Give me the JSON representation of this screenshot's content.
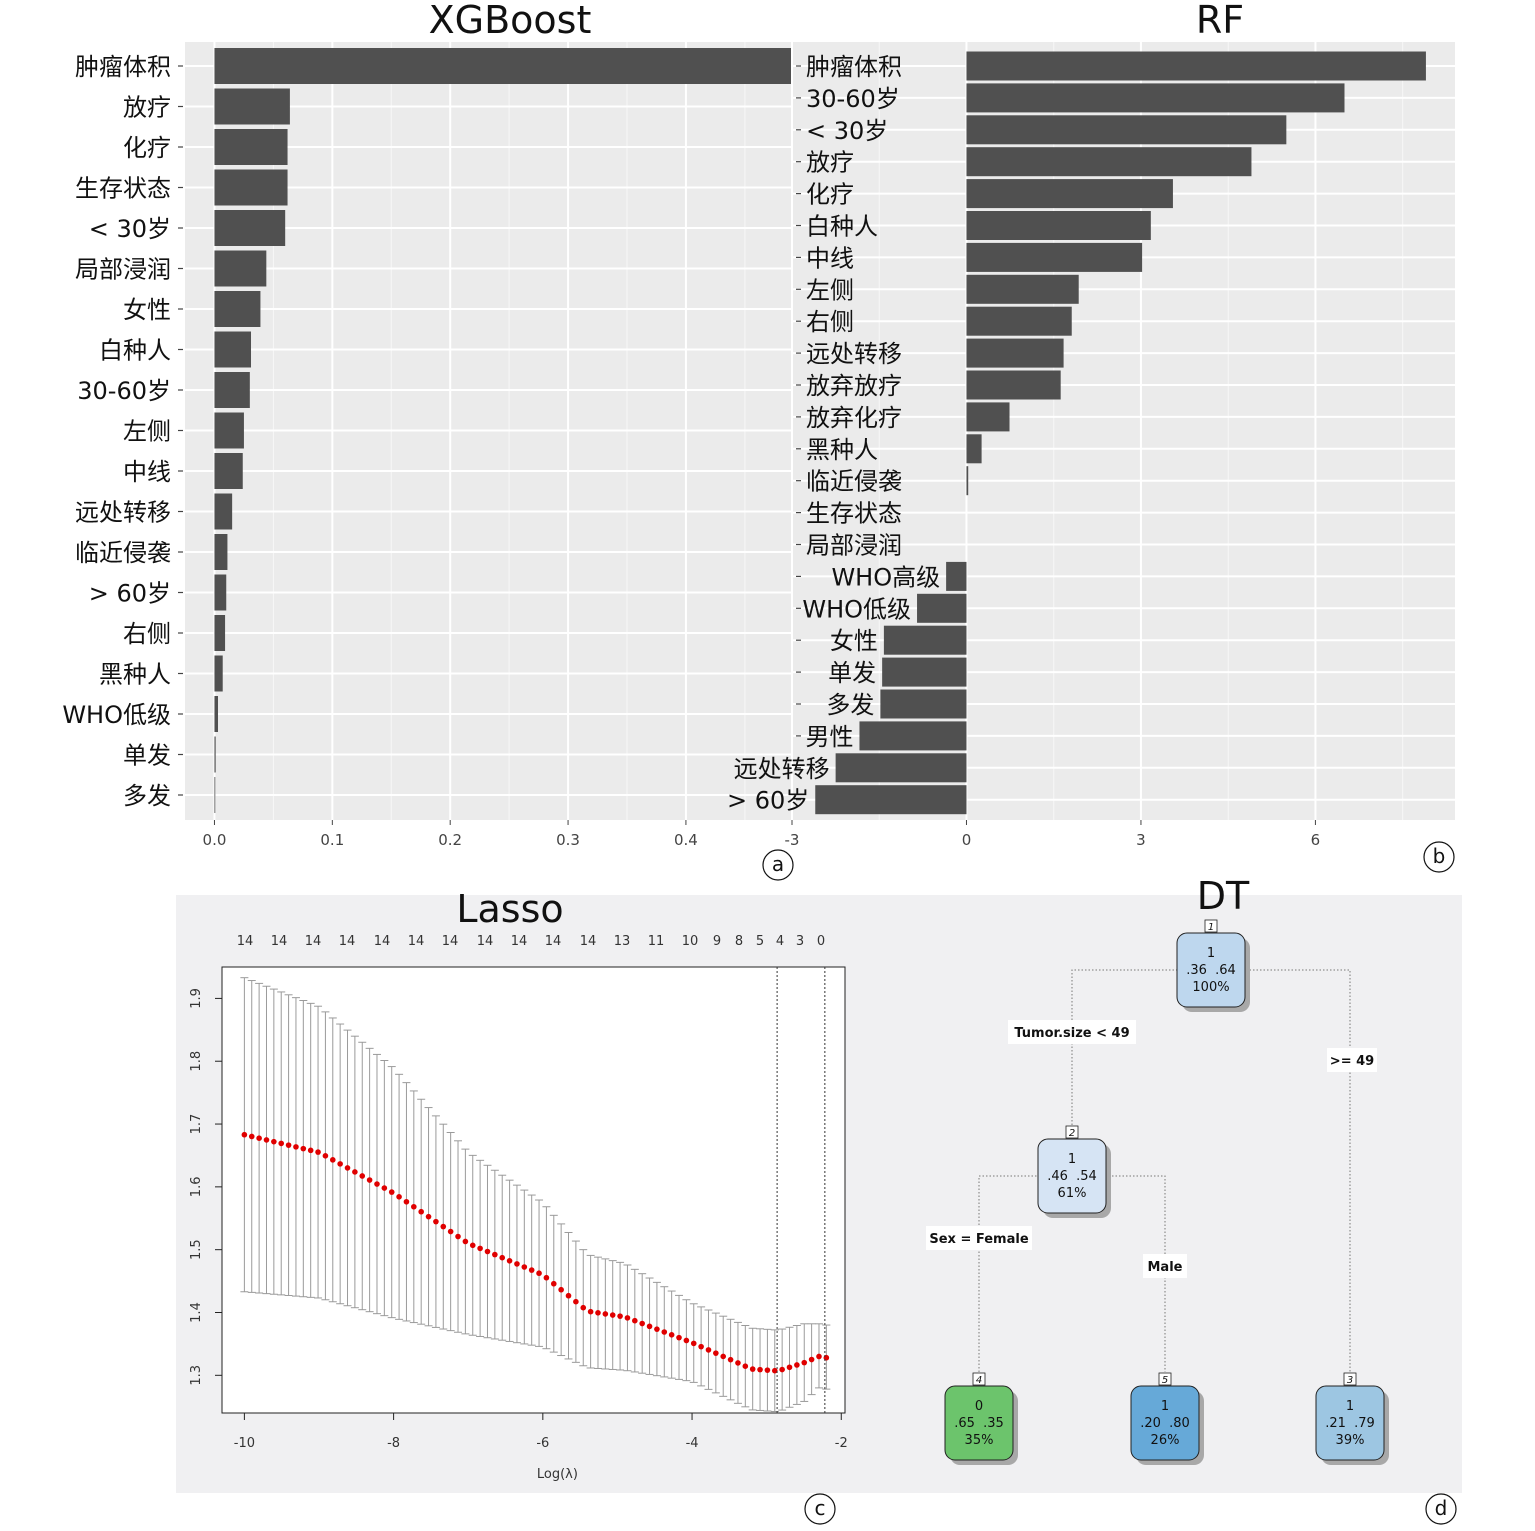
{
  "chart_data": [
    {
      "id": "a",
      "type": "bar",
      "orientation": "horizontal",
      "title": "XGBoost",
      "panel_label": "a",
      "categories": [
        "肿瘤体积",
        "放疗",
        "化疗",
        "生存状态",
        "< 30岁",
        "局部浸润",
        "女性",
        "白种人",
        "30-60岁",
        "左侧",
        "中线",
        "远处转移",
        "临近侵袭",
        "> 60岁",
        "右侧",
        "黑种人",
        "WHO低级",
        "单发",
        "多发"
      ],
      "values": [
        0.49,
        0.064,
        0.062,
        0.062,
        0.06,
        0.044,
        0.039,
        0.031,
        0.03,
        0.025,
        0.024,
        0.015,
        0.011,
        0.01,
        0.009,
        0.007,
        0.003,
        0.001,
        0.0
      ],
      "xlim": [
        -0.025,
        0.49
      ],
      "xticks": [
        "0.0",
        "0.1",
        "0.2",
        "0.3",
        "0.4"
      ],
      "grid": true,
      "colors": {
        "bar": "#505050",
        "panel": "#ebebeb",
        "grid": "#ffffff"
      }
    },
    {
      "id": "b",
      "type": "bar",
      "orientation": "horizontal",
      "title": "RF",
      "panel_label": "b",
      "categories": [
        "肿瘤体积",
        "30-60岁",
        "< 30岁",
        "放疗",
        "化疗",
        "白种人",
        "中线",
        "左侧",
        "右侧",
        "远处转移",
        "放弃放疗",
        "放弃化疗",
        "黑种人",
        "临近侵袭",
        "生存状态",
        "局部浸润",
        "WHO高级",
        "WHO低级",
        "女性",
        "单发",
        "多发",
        "男性",
        "远处转移",
        "> 60岁"
      ],
      "values": [
        7.9,
        6.5,
        5.5,
        4.9,
        3.55,
        3.17,
        3.02,
        1.93,
        1.81,
        1.67,
        1.62,
        0.74,
        0.26,
        0.03,
        0.0,
        0.0,
        -0.35,
        -0.85,
        -1.42,
        -1.45,
        -1.48,
        -1.84,
        -2.25,
        -2.6
      ],
      "xlim": [
        -3.0,
        8.4
      ],
      "xticks": [
        "-3",
        "0",
        "3",
        "6"
      ],
      "grid": true,
      "colors": {
        "bar": "#505050",
        "panel": "#ebebeb",
        "grid": "#ffffff"
      }
    },
    {
      "id": "c",
      "type": "scatter",
      "title": "Lasso",
      "panel_label": "c",
      "xlabel": "Log(λ)",
      "ylabel": "",
      "xlim": [
        -10.3,
        -1.95
      ],
      "ylim": [
        1.24,
        1.95
      ],
      "xticks": [
        "-10",
        "-8",
        "-6",
        "-4",
        "-2"
      ],
      "yticks": [
        "1.3",
        "1.4",
        "1.5",
        "1.6",
        "1.7",
        "1.8",
        "1.9"
      ],
      "top_axis_labels": [
        "14",
        "14",
        "14",
        "14",
        "14",
        "14",
        "14",
        "14",
        "14",
        "14",
        "14",
        "13",
        "11",
        "10",
        "9",
        "8",
        "5",
        "4",
        "3",
        "0"
      ],
      "points": [
        {
          "x": -10.0,
          "y": 1.683,
          "lo": 1.433,
          "hi": 1.933
        },
        {
          "x": -9.0,
          "y": 1.655,
          "lo": 1.423,
          "hi": 1.887
        },
        {
          "x": -8.0,
          "y": 1.59,
          "lo": 1.391,
          "hi": 1.789
        },
        {
          "x": -7.0,
          "y": 1.51,
          "lo": 1.365,
          "hi": 1.655
        },
        {
          "x": -6.0,
          "y": 1.46,
          "lo": 1.345,
          "hi": 1.575
        },
        {
          "x": -5.4,
          "y": 1.402,
          "lo": 1.312,
          "hi": 1.492
        },
        {
          "x": -4.9,
          "y": 1.393,
          "lo": 1.308,
          "hi": 1.478
        },
        {
          "x": -4.0,
          "y": 1.352,
          "lo": 1.29,
          "hi": 1.415
        },
        {
          "x": -3.2,
          "y": 1.31,
          "lo": 1.245,
          "hi": 1.375
        },
        {
          "x": -2.85,
          "y": 1.307,
          "lo": 1.242,
          "hi": 1.372
        },
        {
          "x": -2.5,
          "y": 1.32,
          "lo": 1.258,
          "hi": 1.382
        },
        {
          "x": -2.3,
          "y": 1.33,
          "lo": 1.28,
          "hi": 1.382
        },
        {
          "x": -2.2,
          "y": 1.328,
          "lo": 1.278,
          "hi": 1.38
        }
      ],
      "vlines": [
        -2.86,
        -2.22
      ],
      "colors": {
        "point": "#e00000",
        "errorbar": "#9a9a9a",
        "panel": "#f0f0f2"
      }
    },
    {
      "id": "d",
      "type": "tree",
      "title": "DT",
      "panel_label": "d",
      "nodes": [
        {
          "id": "1",
          "class": "1",
          "probs": ".36  .64",
          "pct": "100%",
          "color": "#bed7ee"
        },
        {
          "id": "2",
          "class": "1",
          "probs": ".46  .54",
          "pct": "61%",
          "color": "#d6e4f4"
        },
        {
          "id": "3",
          "class": "1",
          "probs": ".21  .79",
          "pct": "39%",
          "color": "#9dc6e2"
        },
        {
          "id": "4",
          "class": "0",
          "probs": ".65  .35",
          "pct": "35%",
          "color": "#6cc46c"
        },
        {
          "id": "5",
          "class": "1",
          "probs": ".20  .80",
          "pct": "26%",
          "color": "#66a9d8"
        }
      ],
      "splits": [
        "Tumor.size < 49",
        ">= 49",
        "Sex = Female",
        "Male"
      ],
      "colors": {
        "panel": "#f0f0f2",
        "line": "#777777"
      }
    }
  ]
}
